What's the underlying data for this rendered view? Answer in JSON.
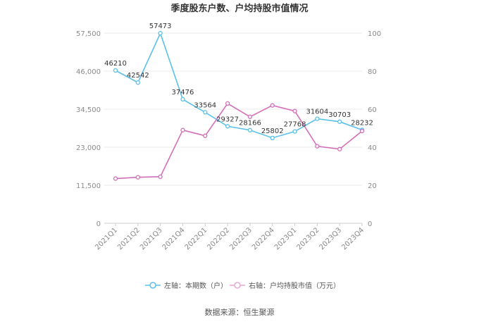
{
  "chart_data": {
    "type": "line",
    "title": "季度股东户数、户均持股市值情况",
    "categories": [
      "2021Q1",
      "2021Q2",
      "2021Q3",
      "2021Q4",
      "2022Q1",
      "2022Q2",
      "2022Q3",
      "2022Q4",
      "2023Q1",
      "2023Q2",
      "2023Q3",
      "2023Q4"
    ],
    "y_left": {
      "ticks": [
        "0",
        "11,500",
        "23,000",
        "34,500",
        "46,000",
        "57,500"
      ],
      "range": [
        0,
        57500
      ]
    },
    "y_right": {
      "ticks": [
        "0",
        "20",
        "40",
        "60",
        "80",
        "100"
      ],
      "range": [
        0,
        100
      ]
    },
    "series": [
      {
        "name": "左轴：本期数（户）",
        "axis": "left",
        "color": "#5bc0eb",
        "values": [
          46210,
          42542,
          57473,
          37476,
          33564,
          29327,
          28166,
          25802,
          27768,
          31604,
          30703,
          28232
        ],
        "labels": [
          "46210",
          "42542",
          "57473",
          "37476",
          "33564",
          "29327",
          "28166",
          "25802",
          "27768",
          "31604",
          "30703",
          "28232"
        ]
      },
      {
        "name": "右轴：户均持股市值（万元）",
        "axis": "right",
        "color": "#d36fb8",
        "values": [
          23.5,
          24.2,
          24.5,
          49,
          46,
          63,
          56,
          62,
          59,
          40.5,
          39,
          48.5
        ]
      }
    ],
    "grid": true,
    "legend_position": "bottom"
  },
  "source": "数据来源：恒生聚源"
}
